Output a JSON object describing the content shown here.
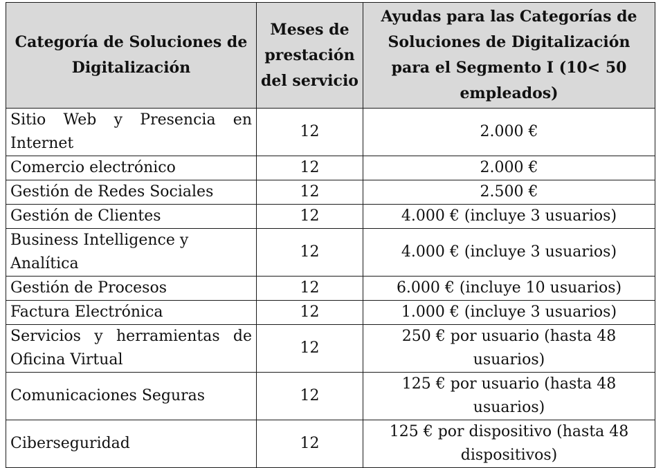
{
  "table": {
    "headers": {
      "category": "Categoría de Soluciones de Digitalización",
      "months": "Meses de prestación del servicio",
      "aid": "Ayudas para las Categorías de Soluciones de Digitalización para el Segmento I (10< 50 empleados)"
    },
    "rows": [
      {
        "category": "Sitio Web y Presencia en Internet",
        "months": "12",
        "aid": "2.000 €"
      },
      {
        "category": "Comercio electrónico",
        "months": "12",
        "aid": "2.000 €"
      },
      {
        "category": "Gestión de Redes Sociales",
        "months": "12",
        "aid": "2.500 €"
      },
      {
        "category": "Gestión de Clientes",
        "months": "12",
        "aid": "4.000 € (incluye 3 usuarios)"
      },
      {
        "category": "Business Intelligence y Analítica",
        "months": "12",
        "aid": "4.000 € (incluye 3 usuarios)"
      },
      {
        "category": "Gestión de Procesos",
        "months": "12",
        "aid": "6.000 € (incluye 10 usuarios)"
      },
      {
        "category": "Factura Electrónica",
        "months": "12",
        "aid": "1.000 € (incluye 3 usuarios)"
      },
      {
        "category": "Servicios y herramientas de Oficina Virtual",
        "months": "12",
        "aid": "250 € por usuario (hasta 48 usuarios)"
      },
      {
        "category": "Comunicaciones Seguras",
        "months": "12",
        "aid": "125 € por usuario (hasta 48 usuarios)"
      },
      {
        "category": "Ciberseguridad",
        "months": "12",
        "aid": "125 € por dispositivo (hasta 48 dispositivos)"
      }
    ]
  }
}
